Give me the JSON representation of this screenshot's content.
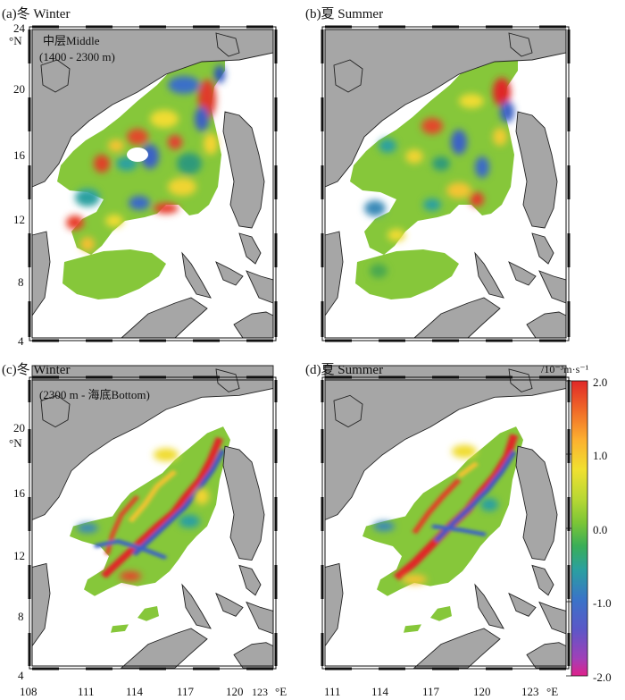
{
  "panels": {
    "a": {
      "title": "(a)冬 Winter",
      "layer_cn": "中层Middle",
      "layer_range": "(1400 - 2300 m)"
    },
    "b": {
      "title": "(b)夏 Summer"
    },
    "c": {
      "title": "(c)冬 Winter",
      "layer_range": "(2300 m - 海底Bottom)"
    },
    "d": {
      "title": "(d)夏 Summer"
    }
  },
  "axes": {
    "lat_unit": "°N",
    "lon_unit": "°E",
    "lat_ticks_top": [
      "24",
      "20",
      "16",
      "12",
      "8",
      "4"
    ],
    "lat_ticks_bottom": [
      "20",
      "16",
      "12",
      "8",
      "4"
    ],
    "lon_ticks": [
      "108",
      "111",
      "114",
      "117",
      "120",
      "123"
    ]
  },
  "colorbar": {
    "unit_label": "/10⁻³m·s⁻¹",
    "ticks": [
      "2.0",
      "1.0",
      "0.0",
      "-1.0",
      "-2.0"
    ],
    "colors": [
      "#e0218a",
      "#b040b0",
      "#7a4fc0",
      "#4a5fc8",
      "#3078c8",
      "#2aa0a0",
      "#2eaa6a",
      "#4ab640",
      "#7cc636",
      "#a8d432",
      "#d4e030",
      "#f0e030",
      "#fcc030",
      "#fa9030",
      "#f05a28",
      "#e02828"
    ]
  },
  "colors": {
    "land": "#a6a6a6",
    "coast": "#222222",
    "frame": "#111111"
  }
}
